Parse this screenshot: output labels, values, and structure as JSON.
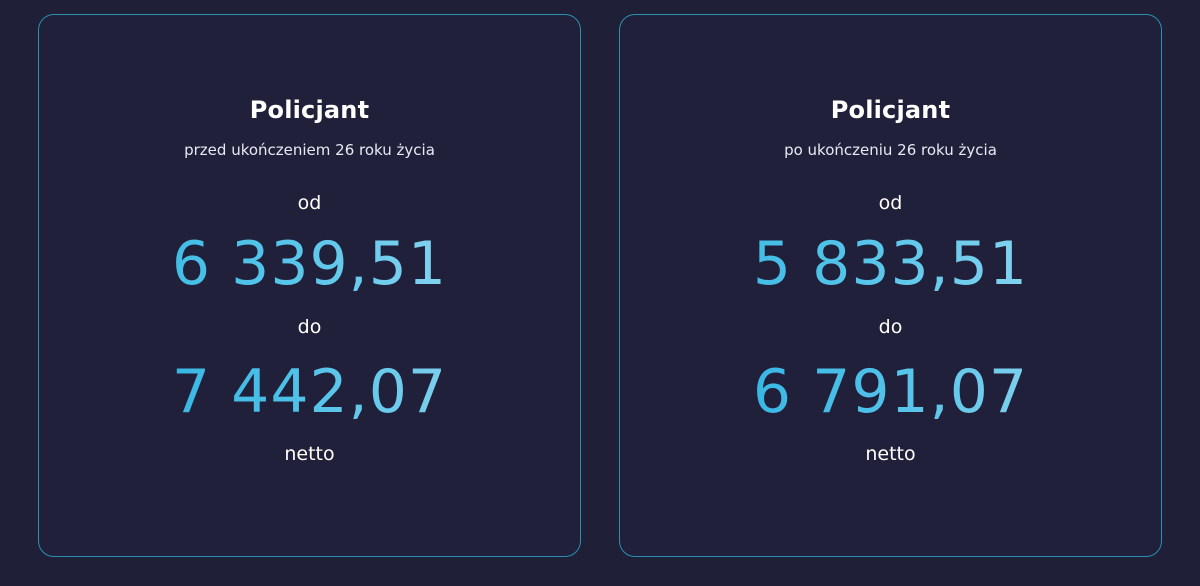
{
  "cards": [
    {
      "title": "Policjant",
      "subtitle": "przed ukończeniem 26 roku życia",
      "from_label": "od",
      "from_value": "6 339,51",
      "to_label": "do",
      "to_value": "7 442,07",
      "suffix": "netto"
    },
    {
      "title": "Policjant",
      "subtitle": "po ukończeniu 26 roku życia",
      "from_label": "od",
      "from_value": "5 833,51",
      "to_label": "do",
      "to_value": "6 791,07",
      "suffix": "netto"
    }
  ],
  "colors": {
    "background": "#1f2038",
    "card_border": "#2a8fb0",
    "value_gradient_start": "#2cb3e0",
    "value_gradient_end": "#a6ddf2",
    "text": "#ffffff"
  }
}
